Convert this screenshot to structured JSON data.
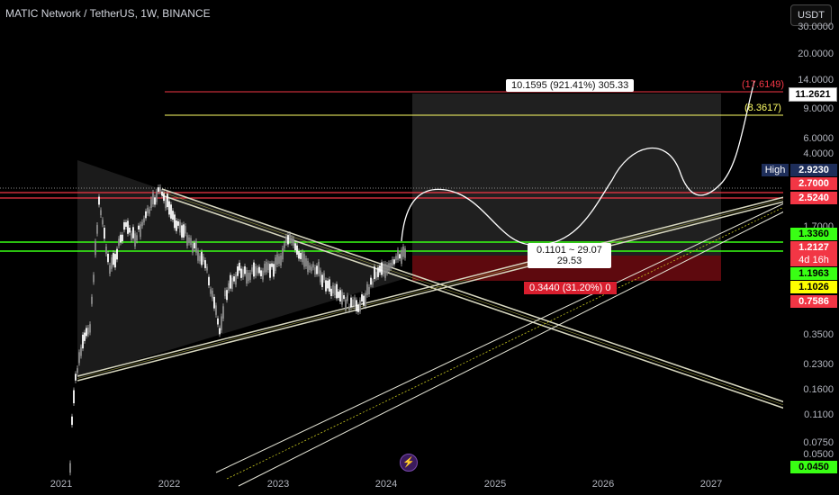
{
  "header": {
    "symbol": "MATIC Network / TetherUS, 1W, BINANCE",
    "currency": "USDT"
  },
  "y_axis": {
    "labels": [
      "30.0000",
      "20.0000",
      "14.0000",
      "9.0000",
      "6.0000",
      "4.0000",
      "1.7000",
      "0.3500",
      "0.2300",
      "0.1600",
      "0.1100",
      "0.0750",
      "0.0500"
    ]
  },
  "x_axis": {
    "labels": [
      "2021",
      "2022",
      "2023",
      "2024",
      "2025",
      "2026",
      "2027"
    ]
  },
  "price_tags": {
    "high_label": "High",
    "high_value": "2.9230",
    "tag_11": "11.2621",
    "tag_27": "2.7000",
    "tag_25": "2.5240",
    "tag_133": "1.3360",
    "tag_121": "1.2127",
    "tag_timer": "4d 16h",
    "tag_119": "1.1963",
    "tag_110": "1.1026",
    "tag_075": "0.7586",
    "tag_004": "0.0450"
  },
  "annotations": {
    "target_box": "10.1595 (921.41%) 305.33",
    "mid_box_line1": "0.1101 ~ 29.07",
    "mid_box_line2": "29.53",
    "stop_badge": "0.3440 (31.20%) 0",
    "target_red": "(17.6149)",
    "target_yellow": "(8.3617)"
  },
  "colors": {
    "green": "#39ff14",
    "red": "#f23645",
    "yellow": "#ffff00",
    "navy": "#1e2e5a"
  }
}
